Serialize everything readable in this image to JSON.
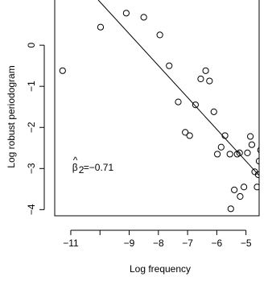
{
  "chart_data": {
    "type": "scatter",
    "xlabel": "Log frequency",
    "ylabel": "Log robust periodogram",
    "xlim": [
      -11.55,
      -4.55
    ],
    "ylim": [
      -4.15,
      1.1
    ],
    "xticks": [
      -11,
      -10,
      -9,
      -8,
      -7,
      -6,
      -5
    ],
    "xtick_labels": [
      "−11",
      "",
      "−9",
      "−8",
      "−7",
      "−6",
      "−5"
    ],
    "yticks": [
      0,
      -1,
      -2,
      -3,
      -4
    ],
    "ytick_labels": [
      "0",
      "−1",
      "−2",
      "−3",
      "−4"
    ],
    "annotation": {
      "text_prefix": "β",
      "hat": "^",
      "subscript": "2",
      "text_suffix": "=−0.71",
      "x": -10.95,
      "y": -3.05
    },
    "fit_line": {
      "x": [
        -10.06,
        -4.55
      ],
      "y": [
        1.1,
        -3.17
      ]
    },
    "points": [
      {
        "x": -11.28,
        "y": -0.62
      },
      {
        "x": -9.98,
        "y": 0.44
      },
      {
        "x": -9.1,
        "y": 0.78
      },
      {
        "x": -8.5,
        "y": 0.68
      },
      {
        "x": -7.95,
        "y": 0.25
      },
      {
        "x": -7.63,
        "y": -0.5
      },
      {
        "x": -7.32,
        "y": -1.38
      },
      {
        "x": -6.93,
        "y": -2.2
      },
      {
        "x": -6.73,
        "y": -1.45
      },
      {
        "x": -6.55,
        "y": -0.82
      },
      {
        "x": -6.38,
        "y": -0.62
      },
      {
        "x": -6.25,
        "y": -0.87
      },
      {
        "x": -6.1,
        "y": -1.62
      },
      {
        "x": -5.98,
        "y": -2.65
      },
      {
        "x": -5.72,
        "y": -2.2
      },
      {
        "x": -5.55,
        "y": -2.65
      },
      {
        "x": -5.4,
        "y": -3.52
      },
      {
        "x": -5.3,
        "y": -2.65
      },
      {
        "x": -5.22,
        "y": -2.62
      },
      {
        "x": -5.07,
        "y": -3.45
      },
      {
        "x": -4.95,
        "y": -2.62
      },
      {
        "x": -4.85,
        "y": -2.22
      },
      {
        "x": -4.8,
        "y": -2.42
      },
      {
        "x": -4.7,
        "y": -3.08
      },
      {
        "x": -4.62,
        "y": -3.45
      },
      {
        "x": -4.58,
        "y": -3.15
      },
      {
        "x": -4.55,
        "y": -2.82
      },
      {
        "x": -4.5,
        "y": -2.55
      },
      {
        "x": -4.45,
        "y": -2.15
      },
      {
        "x": -5.2,
        "y": -3.68
      },
      {
        "x": -5.52,
        "y": -3.98
      },
      {
        "x": -7.08,
        "y": -2.12
      },
      {
        "x": -5.85,
        "y": -2.48
      }
    ]
  }
}
